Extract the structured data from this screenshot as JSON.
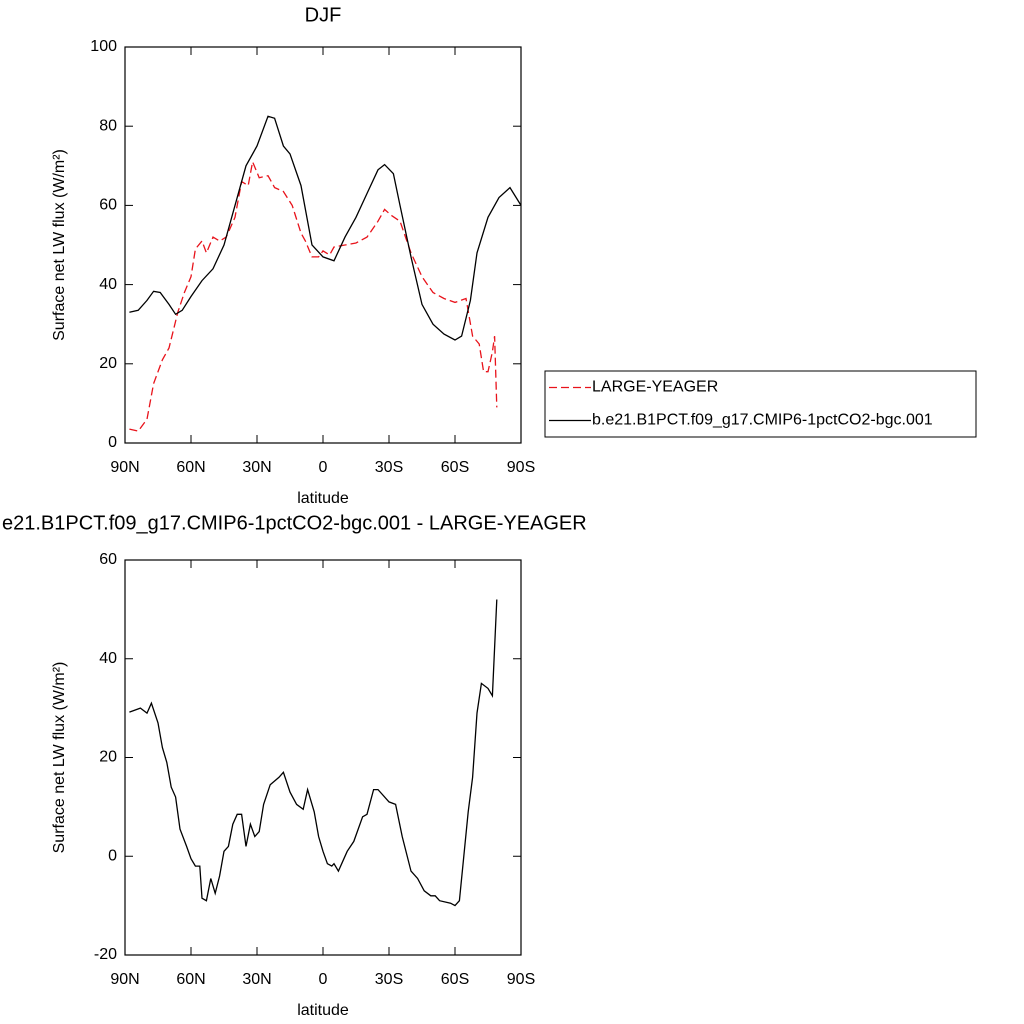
{
  "chart_data": [
    {
      "type": "line",
      "title": "DJF",
      "xlabel": "latitude",
      "ylabel": "Surface net LW flux (W/m²)",
      "xlim": [
        90,
        -90
      ],
      "ylim": [
        0,
        100
      ],
      "xticks": [
        {
          "value": 90,
          "label": "90N"
        },
        {
          "value": 60,
          "label": "60N"
        },
        {
          "value": 30,
          "label": "30N"
        },
        0,
        {
          "value": -30,
          "label": "30S"
        },
        {
          "value": -60,
          "label": "60S"
        },
        {
          "value": -90,
          "label": "90S"
        }
      ],
      "yticks": [
        0,
        20,
        40,
        60,
        80,
        100
      ],
      "legend": "right",
      "series": [
        {
          "name": "LARGE-YEAGER",
          "color": "#e8131b",
          "dash": true,
          "x": [
            88,
            84,
            80,
            77,
            73,
            70,
            66,
            63,
            60,
            58,
            55,
            53,
            50,
            47,
            44,
            40,
            37,
            34,
            32,
            29,
            25,
            22,
            18,
            14,
            10,
            8,
            5,
            2,
            0,
            -3,
            -5,
            -10,
            -15,
            -20,
            -25,
            -28,
            -31,
            -35,
            -40,
            -45,
            -50,
            -55,
            -60,
            -65,
            -68,
            -71,
            -73,
            -75,
            -77,
            -78,
            -79
          ],
          "values": [
            3.5,
            3,
            6,
            15,
            21,
            24,
            33,
            38,
            42,
            49,
            51,
            48,
            52,
            51,
            52,
            57,
            66,
            65,
            71,
            67,
            67.5,
            64.5,
            63.5,
            60,
            53,
            51,
            47,
            47,
            48.5,
            47.5,
            49.5,
            50,
            50.5,
            52,
            56,
            59,
            57.5,
            56,
            48,
            42,
            38,
            36.5,
            35.5,
            36.5,
            27,
            25,
            18,
            18,
            23,
            27,
            9
          ]
        },
        {
          "name": "b.e21.B1PCT.f09_g17.CMIP6-1pctCO2-bgc.001",
          "color": "#000000",
          "dash": false,
          "x": [
            88,
            84,
            80,
            77,
            74,
            70,
            67,
            64,
            60,
            55,
            50,
            45,
            40,
            35,
            30,
            25,
            22,
            18,
            15,
            10,
            5,
            0,
            -5,
            -10,
            -15,
            -20,
            -25,
            -28,
            -32,
            -35,
            -40,
            -45,
            -50,
            -55,
            -60,
            -63,
            -67,
            -70,
            -75,
            -80,
            -85,
            -90
          ],
          "values": [
            33,
            33.5,
            36,
            38.3,
            38,
            35,
            32.5,
            33.5,
            37,
            41,
            44,
            50,
            60,
            70,
            75,
            82.5,
            82,
            75,
            73,
            65,
            50,
            47,
            46,
            52,
            57,
            63,
            69,
            70.3,
            68,
            60,
            47,
            35,
            30,
            27.5,
            26,
            27,
            36,
            48,
            57,
            62,
            64.5,
            60
          ]
        }
      ]
    },
    {
      "type": "line",
      "title": "e21.B1PCT.f09_g17.CMIP6-1pctCO2-bgc.001 - LARGE-YEAGER",
      "xlabel": "latitude",
      "ylabel": "Surface net LW flux (W/m²)",
      "xlim": [
        90,
        -90
      ],
      "ylim": [
        -20,
        60
      ],
      "xticks": [
        {
          "value": 90,
          "label": "90N"
        },
        {
          "value": 60,
          "label": "60N"
        },
        {
          "value": 30,
          "label": "30N"
        },
        0,
        {
          "value": -30,
          "label": "30S"
        },
        {
          "value": -60,
          "label": "60S"
        },
        {
          "value": -90,
          "label": "90S"
        }
      ],
      "yticks": [
        -20,
        0,
        20,
        40,
        60
      ],
      "series": [
        {
          "color": "#000000",
          "dash": false,
          "x": [
            88,
            83,
            80,
            78,
            75,
            73,
            71,
            69,
            67,
            65,
            62,
            60,
            58,
            56,
            55,
            53,
            51,
            49,
            47,
            45,
            43,
            41,
            39,
            37,
            35,
            33,
            31,
            29,
            27,
            24,
            20,
            18,
            15,
            12,
            9,
            7,
            4,
            2,
            0,
            -2,
            -4,
            -5,
            -7,
            -9,
            -11,
            -14,
            -18,
            -20,
            -23,
            -25,
            -30,
            -33,
            -36,
            -40,
            -43,
            -46,
            -49,
            -51,
            -53,
            -58,
            -60,
            -62,
            -64,
            -66,
            -68,
            -70,
            -72,
            -75,
            -77,
            -79
          ],
          "values": [
            29.2,
            30,
            29,
            31,
            27,
            22,
            19,
            14,
            12,
            5.5,
            2,
            -0.5,
            -2,
            -2,
            -8.5,
            -9,
            -4.5,
            -7.5,
            -4,
            1,
            2,
            6.5,
            8.5,
            8.5,
            2,
            6.5,
            4,
            5,
            10.5,
            14.5,
            16,
            17,
            13,
            10.5,
            9.5,
            13.5,
            9,
            4,
            1,
            -1.5,
            -2,
            -1.5,
            -3,
            -1,
            1,
            3,
            8,
            8.5,
            13.5,
            13.5,
            11,
            10.5,
            4,
            -3,
            -4.5,
            -7,
            -8,
            -8,
            -9,
            -9.5,
            -10,
            -9,
            0,
            9,
            16,
            29,
            35,
            34,
            32.5,
            52
          ]
        }
      ]
    }
  ]
}
